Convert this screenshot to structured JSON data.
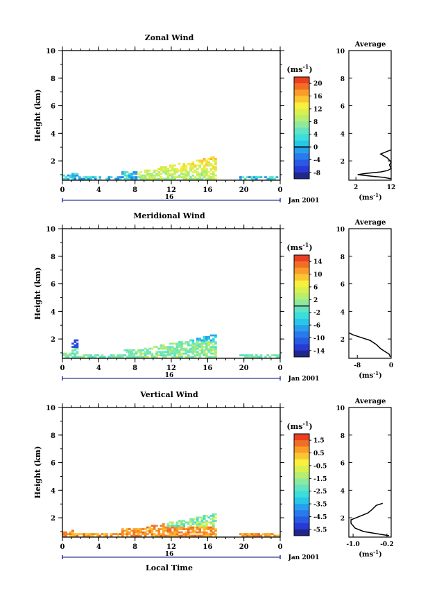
{
  "date_label": "Jan 2001",
  "xlabel": "Local Time",
  "day_label": "16",
  "unit_label": "(ms",
  "unit_sup": "-1",
  "avg_xlabel": "(ms",
  "avg_xsup": "-1",
  "chart_data": [
    {
      "type": "heatmap",
      "title": "Zonal Wind",
      "ylabel": "Height (km)",
      "xlim": [
        0,
        24
      ],
      "ylim": [
        0.6,
        10
      ],
      "x_ticks": [
        "0",
        "4",
        "8",
        "12",
        "16",
        "20",
        "0"
      ],
      "y_ticks": [
        "2",
        "4",
        "6",
        "8",
        "10"
      ],
      "colorbar_ticks": [
        "20",
        "16",
        "12",
        "8",
        "4",
        "0",
        "-4",
        "-8"
      ],
      "colorbar_range": [
        -10,
        22
      ],
      "colorbar_zero": 0,
      "average": {
        "title": "Average",
        "x_ticks": [
          "2",
          "12"
        ],
        "xlim": [
          0,
          12
        ],
        "profile": [
          [
            12,
            0.7
          ],
          [
            10,
            0.8
          ],
          [
            6,
            0.9
          ],
          [
            2.5,
            1.0
          ],
          [
            5,
            1.1
          ],
          [
            9,
            1.2
          ],
          [
            11,
            1.3
          ],
          [
            12,
            1.45
          ],
          [
            11.5,
            1.7
          ],
          [
            12,
            1.9
          ],
          [
            11,
            2.2
          ],
          [
            9,
            2.5
          ],
          [
            12,
            2.8
          ]
        ]
      }
    },
    {
      "type": "heatmap",
      "title": "Meridional Wind",
      "ylabel": "Height (km)",
      "xlim": [
        0,
        24
      ],
      "ylim": [
        0.6,
        10
      ],
      "x_ticks": [
        "0",
        "4",
        "8",
        "12",
        "16",
        "20",
        "0"
      ],
      "y_ticks": [
        "2",
        "4",
        "6",
        "8",
        "10"
      ],
      "colorbar_ticks": [
        "14",
        "10",
        "6",
        "2",
        "-2",
        "-6",
        "-10",
        "-14"
      ],
      "colorbar_range": [
        -16,
        16
      ],
      "colorbar_zero": 0,
      "average": {
        "title": "Average",
        "x_ticks": [
          "-8",
          "0"
        ],
        "xlim": [
          -10,
          0
        ],
        "profile": [
          [
            -0.2,
            0.7
          ],
          [
            -0.5,
            0.9
          ],
          [
            -1.5,
            1.1
          ],
          [
            -2.5,
            1.3
          ],
          [
            -3.5,
            1.6
          ],
          [
            -5,
            1.9
          ],
          [
            -7,
            2.1
          ],
          [
            -9,
            2.3
          ],
          [
            -10,
            2.45
          ]
        ]
      }
    },
    {
      "type": "heatmap",
      "title": "Vertical Wind",
      "ylabel": "Height (km)",
      "xlim": [
        0,
        24
      ],
      "ylim": [
        0.6,
        10
      ],
      "x_ticks": [
        "0",
        "4",
        "8",
        "12",
        "16",
        "20",
        "0"
      ],
      "y_ticks": [
        "2",
        "4",
        "6",
        "8",
        "10"
      ],
      "colorbar_ticks": [
        "1.5",
        "0.5",
        "-0.5",
        "-1.5",
        "-2.5",
        "-3.5",
        "-4.5",
        "-5.5"
      ],
      "colorbar_range": [
        -6,
        2
      ],
      "colorbar_zero": null,
      "average": {
        "title": "Average",
        "x_ticks": [
          "-1.0",
          "-0.2"
        ],
        "xlim": [
          -1.1,
          -0.1
        ],
        "profile": [
          [
            -0.15,
            0.7
          ],
          [
            -0.45,
            0.85
          ],
          [
            -0.75,
            1.0
          ],
          [
            -0.95,
            1.25
          ],
          [
            -1.05,
            1.6
          ],
          [
            -1.05,
            1.85
          ],
          [
            -0.85,
            2.1
          ],
          [
            -0.65,
            2.35
          ],
          [
            -0.55,
            2.6
          ],
          [
            -0.45,
            2.9
          ],
          [
            -0.3,
            3.05
          ]
        ]
      }
    }
  ]
}
